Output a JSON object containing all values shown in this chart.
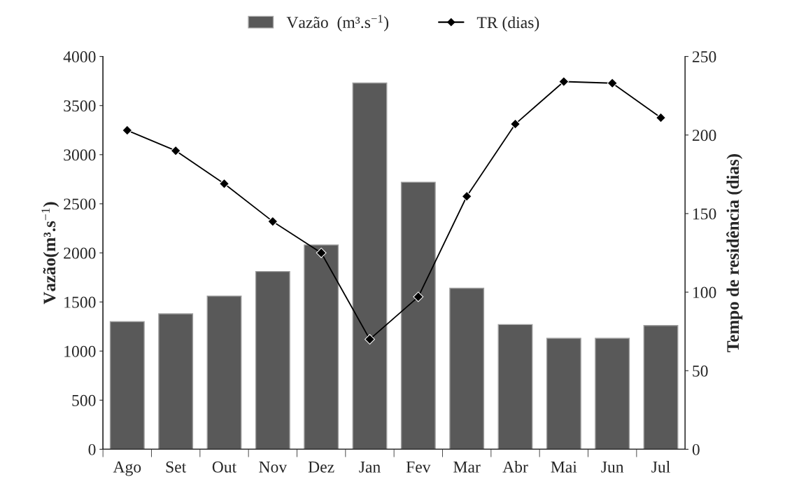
{
  "chart_data": {
    "type": "bar",
    "categories": [
      "Ago",
      "Set",
      "Out",
      "Nov",
      "Dez",
      "Jan",
      "Fev",
      "Mar",
      "Abr",
      "Mai",
      "Jun",
      "Jul"
    ],
    "series": [
      {
        "name": "Vazão  (m³.s$^{−1}$)",
        "color": "#595959",
        "values": [
          1300,
          1380,
          1560,
          1810,
          2080,
          3730,
          2720,
          1640,
          1270,
          1130,
          1130,
          1260
        ]
      },
      {
        "name": "TR (dias)",
        "type": "line",
        "axis": "y2",
        "color": "#000000",
        "values": [
          203,
          190,
          169,
          145,
          125,
          70,
          97,
          161,
          207,
          234,
          233,
          211
        ]
      }
    ],
    "ylabel": "Vazão(m³.s$^{−1}$)",
    "y2label": "Tempo de residência (dias)",
    "ylim": [
      0,
      4000
    ],
    "yticks": [
      0,
      500,
      1000,
      1500,
      2000,
      2500,
      3000,
      3500,
      4000
    ],
    "y2lim": [
      0,
      250
    ],
    "y2ticks": [
      0,
      50,
      100,
      150,
      200,
      250
    ],
    "marker": "diamond",
    "line_style": "solid",
    "legend": "top",
    "grid": false
  }
}
